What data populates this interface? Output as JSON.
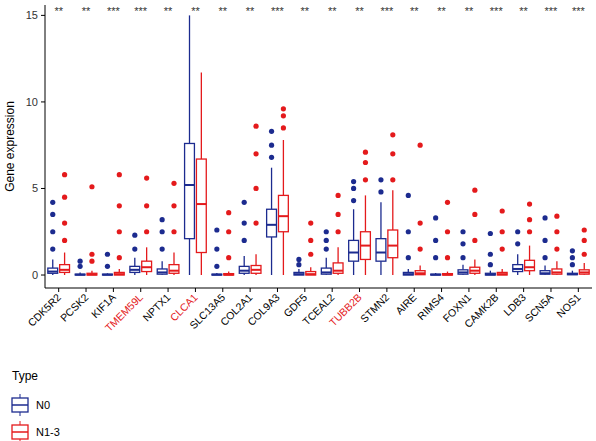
{
  "chart_data": {
    "type": "boxplot",
    "y_label": "Gene expression",
    "categories": [
      "CDK5R2",
      "PCSK2",
      "KIF1A",
      "TMEM59L",
      "NPTX1",
      "CLCA1",
      "SLC13A5",
      "COL2A1",
      "COL9A3",
      "GDF5",
      "TCEAL2",
      "TUBB2B",
      "STMN2",
      "AIRE",
      "RIMS4",
      "FOXN1",
      "CAMK2B",
      "LDB3",
      "SCN5A",
      "NOS1"
    ],
    "label_colors": [
      "#000000",
      "#000000",
      "#000000",
      "#e41a1c",
      "#000000",
      "#e41a1c",
      "#000000",
      "#000000",
      "#000000",
      "#000000",
      "#000000",
      "#e41a1c",
      "#000000",
      "#000000",
      "#000000",
      "#000000",
      "#000000",
      "#000000",
      "#000000",
      "#000000"
    ],
    "significance": [
      "**",
      "**",
      "***",
      "***",
      "**",
      "**",
      "**",
      "**",
      "***",
      "**",
      "**",
      "**",
      "***",
      "**",
      "**",
      "**",
      "***",
      "**",
      "***",
      "***"
    ],
    "ylim": [
      -0.75,
      15.6
    ],
    "yticks": [
      0,
      5,
      10,
      15
    ],
    "legend_title": "Type",
    "legend": "bottom-left",
    "series": [
      {
        "name": "N0",
        "color": "#1c2b8f",
        "min": [
          0,
          0,
          0,
          0,
          0,
          0,
          0,
          0,
          0,
          0,
          0,
          0,
          0,
          0,
          0,
          0,
          0,
          0,
          0,
          0
        ],
        "q1": [
          0.1,
          0,
          0,
          0.15,
          0.05,
          2.1,
          0,
          0.1,
          2.2,
          0,
          0.05,
          0.8,
          0.8,
          0,
          0,
          0.05,
          0,
          0.2,
          0.05,
          0.02
        ],
        "median": [
          0.2,
          0.02,
          0.02,
          0.3,
          0.15,
          5.2,
          0.02,
          0.25,
          2.9,
          0.05,
          0.15,
          1.3,
          1.3,
          0.05,
          0.02,
          0.15,
          0.03,
          0.35,
          0.1,
          0.05
        ],
        "q3": [
          0.4,
          0.05,
          0.05,
          0.5,
          0.35,
          7.6,
          0.05,
          0.5,
          3.8,
          0.15,
          0.4,
          2.0,
          2.1,
          0.15,
          0.05,
          0.3,
          0.1,
          0.6,
          0.25,
          0.1
        ],
        "max": [
          0.9,
          0.15,
          0.1,
          1.0,
          0.8,
          15,
          0.12,
          1.1,
          6.2,
          0.35,
          1.0,
          3.8,
          4.2,
          0.35,
          0.12,
          0.6,
          0.25,
          1.2,
          0.55,
          0.25
        ],
        "outliers": [
          [
            1.5,
            2.5,
            3.5,
            4.2
          ],
          [
            0.5,
            0.8
          ],
          [
            0.5,
            1.2
          ],
          [
            1.5,
            2.3
          ],
          [
            1.5,
            2.5,
            3.2
          ],
          [],
          [
            0.5,
            1.5,
            2.6
          ],
          [
            2,
            3,
            4.2
          ],
          [
            6.8,
            7.5,
            8.3
          ],
          [
            0.6,
            0.9
          ],
          [
            1.5,
            2,
            2.5
          ],
          [
            4.3,
            5,
            5.4
          ],
          [
            4.8,
            5.5
          ],
          [
            1,
            2.5,
            4.6
          ],
          [
            1,
            2,
            3.3
          ],
          [
            1,
            1.8,
            2.5
          ],
          [
            0.6,
            1.2,
            2.4
          ],
          [
            1.8,
            2.5
          ],
          [
            1,
            2,
            3.3
          ],
          [
            0.6,
            1,
            1.4
          ]
        ]
      },
      {
        "name": "N1-3",
        "color": "#e41a1c",
        "min": [
          0,
          0,
          0,
          0,
          0,
          0,
          0,
          0,
          0,
          0,
          0,
          0,
          0,
          0,
          0,
          0,
          0,
          0,
          0,
          0
        ],
        "q1": [
          0.15,
          0,
          0,
          0.2,
          0.1,
          1.3,
          0,
          0.1,
          2.5,
          0,
          0.1,
          0.9,
          1.0,
          0.02,
          0,
          0.1,
          0,
          0.25,
          0.05,
          0.05
        ],
        "median": [
          0.3,
          0.03,
          0.05,
          0.45,
          0.25,
          4.1,
          0.02,
          0.3,
          3.4,
          0.05,
          0.25,
          1.7,
          1.7,
          0.1,
          0.02,
          0.25,
          0.05,
          0.45,
          0.15,
          0.15
        ],
        "q3": [
          0.6,
          0.1,
          0.15,
          0.8,
          0.6,
          6.7,
          0.08,
          0.55,
          4.6,
          0.2,
          0.7,
          2.5,
          2.6,
          0.25,
          0.08,
          0.45,
          0.15,
          0.85,
          0.35,
          0.3
        ],
        "max": [
          1.3,
          0.25,
          0.35,
          1.6,
          1.3,
          11.7,
          0.2,
          1.2,
          7.8,
          0.45,
          1.6,
          4.6,
          4.9,
          0.55,
          0.2,
          0.9,
          0.35,
          1.7,
          0.8,
          0.7
        ],
        "outliers": [
          [
            2,
            3,
            4.5,
            5.8
          ],
          [
            0.8,
            1.2,
            5.1
          ],
          [
            1,
            2.5,
            4,
            5.8
          ],
          [
            2.5,
            4,
            5.6
          ],
          [
            2.5,
            4,
            5.3
          ],
          [],
          [
            1,
            2.5,
            3.6
          ],
          [
            3,
            5,
            7,
            8.6
          ],
          [
            8.5,
            9.2,
            9.6
          ],
          [
            1.2,
            2,
            3
          ],
          [
            2.5,
            3.5,
            4.6
          ],
          [
            5.5,
            6.5,
            7.1
          ],
          [
            5.5,
            7,
            8.1
          ],
          [
            1.5,
            3,
            7.5
          ],
          [
            1,
            2.5,
            4.2
          ],
          [
            2,
            3.5,
            4.9
          ],
          [
            1.5,
            2.5,
            3.7
          ],
          [
            2.5,
            3.2,
            4.1
          ],
          [
            1.5,
            2.5,
            3.4
          ],
          [
            1.2,
            2,
            2.6
          ]
        ]
      }
    ]
  }
}
